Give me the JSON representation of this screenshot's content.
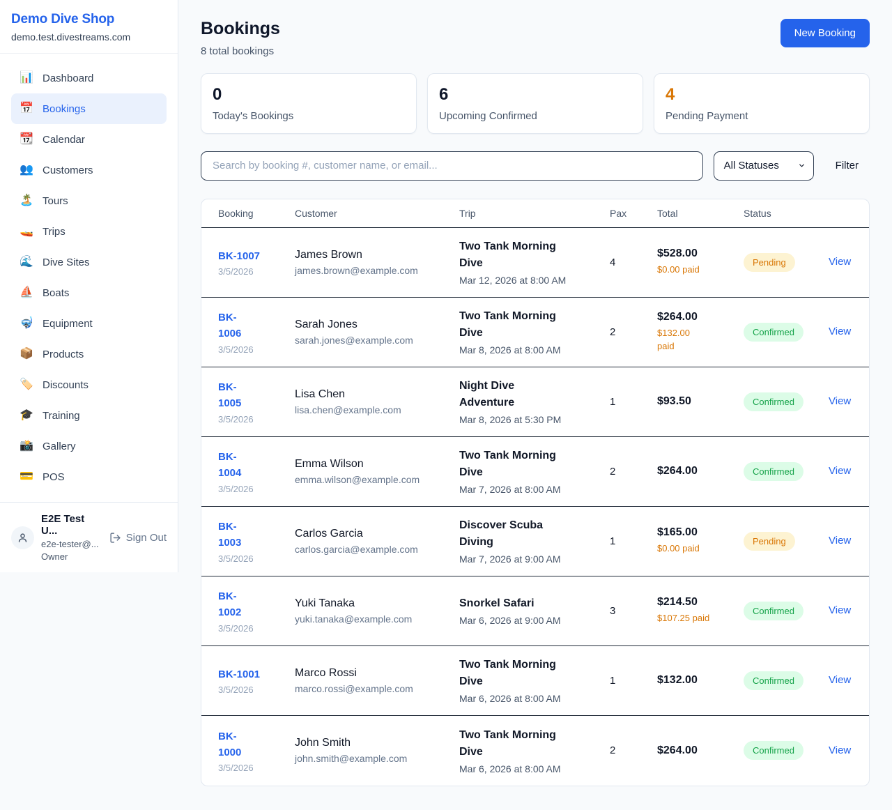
{
  "brand": {
    "name": "Demo Dive Shop",
    "domain": "demo.test.divestreams.com"
  },
  "sidebar": {
    "items": [
      {
        "label": "Dashboard",
        "icon_glyph": "📊",
        "icon_name": "bar-chart-icon",
        "active": false
      },
      {
        "label": "Bookings",
        "icon_glyph": "📅",
        "icon_name": "calendar-icon",
        "active": true
      },
      {
        "label": "Calendar",
        "icon_glyph": "📆",
        "icon_name": "tear-calendar-icon",
        "active": false
      },
      {
        "label": "Customers",
        "icon_glyph": "👥",
        "icon_name": "people-icon",
        "active": false
      },
      {
        "label": "Tours",
        "icon_glyph": "🏝️",
        "icon_name": "island-icon",
        "active": false
      },
      {
        "label": "Trips",
        "icon_glyph": "🚤",
        "icon_name": "speedboat-icon",
        "active": false
      },
      {
        "label": "Dive Sites",
        "icon_glyph": "🌊",
        "icon_name": "wave-icon",
        "active": false
      },
      {
        "label": "Boats",
        "icon_glyph": "⛵",
        "icon_name": "sailboat-icon",
        "active": false
      },
      {
        "label": "Equipment",
        "icon_glyph": "🤿",
        "icon_name": "diving-mask-icon",
        "active": false
      },
      {
        "label": "Products",
        "icon_glyph": "📦",
        "icon_name": "package-icon",
        "active": false
      },
      {
        "label": "Discounts",
        "icon_glyph": "🏷️",
        "icon_name": "tag-icon",
        "active": false
      },
      {
        "label": "Training",
        "icon_glyph": "🎓",
        "icon_name": "graduation-cap-icon",
        "active": false
      },
      {
        "label": "Gallery",
        "icon_glyph": "📸",
        "icon_name": "camera-icon",
        "active": false
      },
      {
        "label": "POS",
        "icon_glyph": "💳",
        "icon_name": "credit-card-icon",
        "active": false
      }
    ],
    "user": {
      "name": "E2E Test U...",
      "email": "e2e-tester@...",
      "role": "Owner",
      "sign_out_label": "Sign Out"
    }
  },
  "header": {
    "title": "Bookings",
    "subtitle": "8 total bookings",
    "new_booking_label": "New Booking"
  },
  "stats": [
    {
      "value": "0",
      "label": "Today's Bookings",
      "color": "#0f172a"
    },
    {
      "value": "6",
      "label": "Upcoming Confirmed",
      "color": "#0f172a"
    },
    {
      "value": "4",
      "label": "Pending Payment",
      "color": "#d97706"
    }
  ],
  "filters": {
    "search_placeholder": "Search by booking #, customer name, or email...",
    "status_selected": "All Statuses",
    "filter_label": "Filter"
  },
  "table": {
    "columns": [
      "Booking",
      "Customer",
      "Trip",
      "Pax",
      "Total",
      "Status"
    ],
    "view_label": "View",
    "rows": [
      {
        "id": "BK-1007",
        "id_two_lines": false,
        "date": "3/5/2026",
        "customer": "James Brown",
        "email": "james.brown@example.com",
        "trip": "Two Tank Morning Dive",
        "trip_date": "Mar 12, 2026 at 8:00 AM",
        "pax": "4",
        "total": "$528.00",
        "paid": "$0.00 paid",
        "paid_two_lines": false,
        "status": "Pending"
      },
      {
        "id": "BK-1006",
        "id_two_lines": true,
        "date": "3/5/2026",
        "customer": "Sarah Jones",
        "email": "sarah.jones@example.com",
        "trip": "Two Tank Morning Dive",
        "trip_date": "Mar 8, 2026 at 8:00 AM",
        "pax": "2",
        "total": "$264.00",
        "paid": "$132.00 paid",
        "paid_two_lines": true,
        "status": "Confirmed"
      },
      {
        "id": "BK-1005",
        "id_two_lines": true,
        "date": "3/5/2026",
        "customer": "Lisa Chen",
        "email": "lisa.chen@example.com",
        "trip": "Night Dive Adventure",
        "trip_date": "Mar 8, 2026 at 5:30 PM",
        "pax": "1",
        "total": "$93.50",
        "paid": "",
        "paid_two_lines": false,
        "status": "Confirmed"
      },
      {
        "id": "BK-1004",
        "id_two_lines": true,
        "date": "3/5/2026",
        "customer": "Emma Wilson",
        "email": "emma.wilson@example.com",
        "trip": "Two Tank Morning Dive",
        "trip_date": "Mar 7, 2026 at 8:00 AM",
        "pax": "2",
        "total": "$264.00",
        "paid": "",
        "paid_two_lines": false,
        "status": "Confirmed"
      },
      {
        "id": "BK-1003",
        "id_two_lines": true,
        "date": "3/5/2026",
        "customer": "Carlos Garcia",
        "email": "carlos.garcia@example.com",
        "trip": "Discover Scuba Diving",
        "trip_date": "Mar 7, 2026 at 9:00 AM",
        "pax": "1",
        "total": "$165.00",
        "paid": "$0.00 paid",
        "paid_two_lines": false,
        "status": "Pending"
      },
      {
        "id": "BK-1002",
        "id_two_lines": true,
        "date": "3/5/2026",
        "customer": "Yuki Tanaka",
        "email": "yuki.tanaka@example.com",
        "trip": "Snorkel Safari",
        "trip_date": "Mar 6, 2026 at 9:00 AM",
        "pax": "3",
        "total": "$214.50",
        "paid": "$107.25 paid",
        "paid_two_lines": false,
        "status": "Confirmed"
      },
      {
        "id": "BK-1001",
        "id_two_lines": false,
        "date": "3/5/2026",
        "customer": "Marco Rossi",
        "email": "marco.rossi@example.com",
        "trip": "Two Tank Morning Dive",
        "trip_date": "Mar 6, 2026 at 8:00 AM",
        "pax": "1",
        "total": "$132.00",
        "paid": "",
        "paid_two_lines": false,
        "status": "Confirmed"
      },
      {
        "id": "BK-1000",
        "id_two_lines": true,
        "date": "3/5/2026",
        "customer": "John Smith",
        "email": "john.smith@example.com",
        "trip": "Two Tank Morning Dive",
        "trip_date": "Mar 6, 2026 at 8:00 AM",
        "pax": "2",
        "total": "$264.00",
        "paid": "",
        "paid_two_lines": false,
        "status": "Confirmed"
      }
    ]
  },
  "colors": {
    "accent": "#2563eb",
    "pending_text": "#d97706",
    "pending_bg": "#fdf3d2",
    "confirmed_text": "#16a34a",
    "confirmed_bg": "#dcfce7",
    "warning_number": "#d97706"
  }
}
